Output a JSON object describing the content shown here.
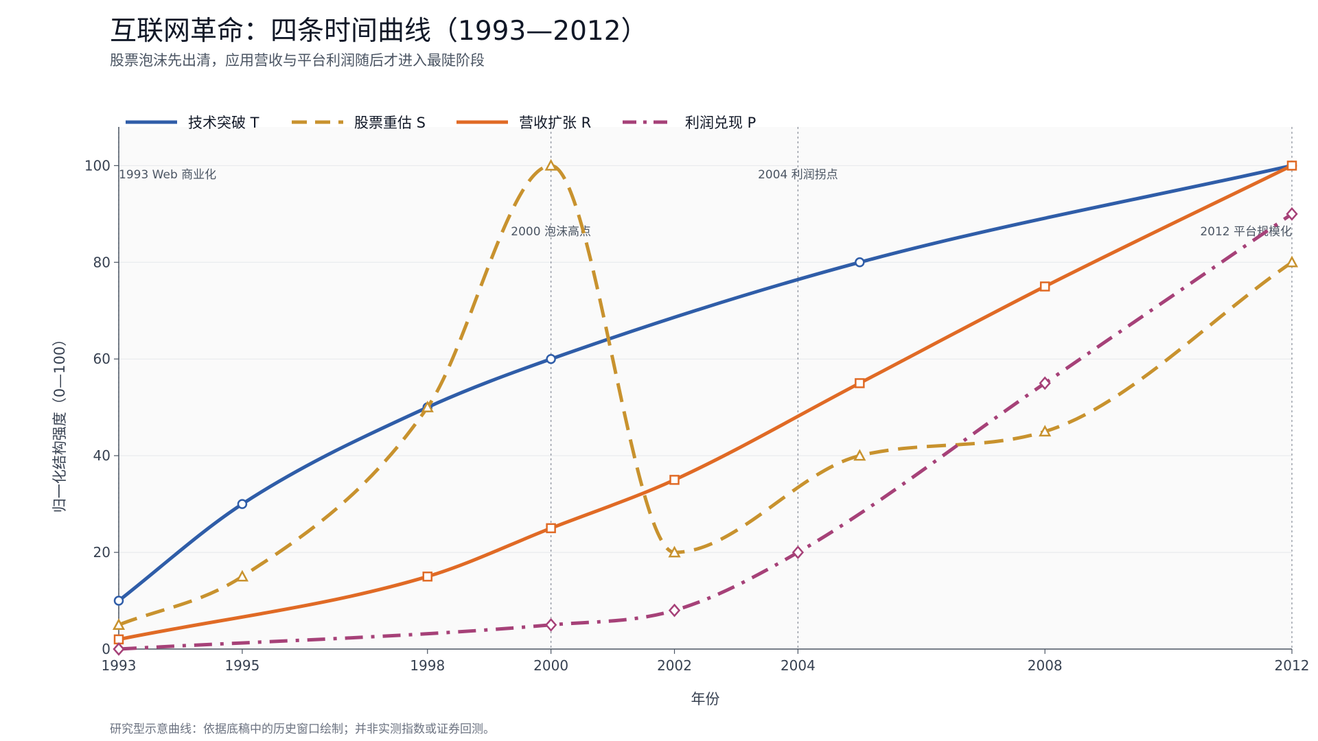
{
  "title": "互联网革命：四条时间曲线（1993—2012）",
  "subtitle": "股票泡沫先出清，应用营收与平台利润随后才进入最陡阶段",
  "footnote": "研究型示意曲线：依据底稿中的历史窗口绘制；并非实测指数或证券回测。",
  "colors": {
    "plot_background": "#fafafa",
    "gridline": "#e5e7eb",
    "axis": "#4b5563",
    "annotation_line": "#6b7280"
  },
  "chart_data": {
    "type": "line",
    "title": "互联网革命：四条时间曲线（1993—2012）",
    "xlabel": "年份",
    "ylabel": "归一化结构强度（0—100）",
    "xlim": [
      1993,
      2012
    ],
    "ylim": [
      0,
      108
    ],
    "x_ticks": [
      1993,
      1995,
      1998,
      2000,
      2002,
      2004,
      2008,
      2012
    ],
    "y_ticks": [
      0,
      20,
      40,
      60,
      80,
      100
    ],
    "grid": "horizontal",
    "legend_position": "top-left",
    "series": [
      {
        "name": "技术突破 T",
        "color": "#2f5da8",
        "line_style": "solid",
        "marker": "circle",
        "points": [
          [
            1993,
            10
          ],
          [
            1995,
            30
          ],
          [
            1998,
            50
          ],
          [
            2000,
            60
          ],
          [
            2005,
            80
          ],
          [
            2012,
            100
          ]
        ]
      },
      {
        "name": "股票重估 S",
        "color": "#c8922e",
        "line_style": "dashed",
        "marker": "triangle",
        "points": [
          [
            1993,
            5
          ],
          [
            1995,
            15
          ],
          [
            1998,
            50
          ],
          [
            2000,
            100
          ],
          [
            2002,
            20
          ],
          [
            2005,
            40
          ],
          [
            2008,
            45
          ],
          [
            2012,
            80
          ]
        ]
      },
      {
        "name": "营收扩张 R",
        "color": "#e06a25",
        "line_style": "solid",
        "marker": "square",
        "points": [
          [
            1993,
            2
          ],
          [
            1998,
            15
          ],
          [
            2000,
            25
          ],
          [
            2002,
            35
          ],
          [
            2005,
            55
          ],
          [
            2008,
            75
          ],
          [
            2012,
            100
          ]
        ]
      },
      {
        "name": "利润兑现 P",
        "color": "#a64178",
        "line_style": "dashdot",
        "marker": "diamond",
        "points": [
          [
            1993,
            0
          ],
          [
            2000,
            5
          ],
          [
            2002,
            8
          ],
          [
            2004,
            20
          ],
          [
            2008,
            55
          ],
          [
            2012,
            90
          ]
        ]
      }
    ],
    "annotations": [
      {
        "x": 1993,
        "label": "1993  Web 商业化",
        "row": 1,
        "anchor": "start"
      },
      {
        "x": 2000,
        "label": "2000  泡沫高点",
        "row": 2,
        "anchor": "middle"
      },
      {
        "x": 2004,
        "label": "2004  利润拐点",
        "row": 1,
        "anchor": "middle"
      },
      {
        "x": 2012,
        "label": "2012  平台规模化",
        "row": 2,
        "anchor": "end"
      }
    ]
  }
}
